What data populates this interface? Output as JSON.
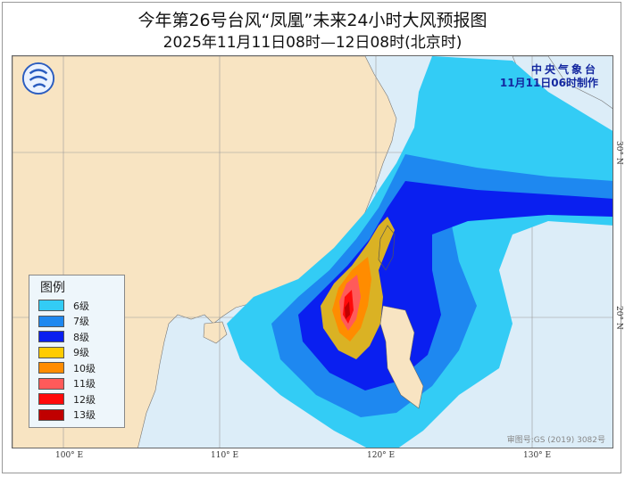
{
  "header": {
    "title": "今年第26号台风“凤凰”未来24小时大风预报图",
    "subtitle": "2025年11月11日08时—12日08时(北京时)"
  },
  "agency": {
    "name": "中央气象台",
    "issued": "11月11日06时制作"
  },
  "legend": {
    "title": "图例",
    "items": [
      {
        "label": "6级",
        "color": "#33ccf5"
      },
      {
        "label": "7级",
        "color": "#1e88f0"
      },
      {
        "label": "8级",
        "color": "#0a1ff0"
      },
      {
        "label": "9级",
        "color": "#ffcc00"
      },
      {
        "label": "10级",
        "color": "#ff8c00"
      },
      {
        "label": "11级",
        "color": "#ff5a5a"
      },
      {
        "label": "12级",
        "color": "#ff0a0a"
      },
      {
        "label": "13级",
        "color": "#c00000"
      }
    ]
  },
  "axes": {
    "lon": [
      "100° E",
      "110° E",
      "120° E",
      "130° E"
    ],
    "lat": [
      "30° N",
      "20° N"
    ]
  },
  "map_review_no": "审图号:GS (2019) 3082号",
  "colors": {
    "land": "#f8e4c2",
    "sea": "#dcedf8"
  }
}
